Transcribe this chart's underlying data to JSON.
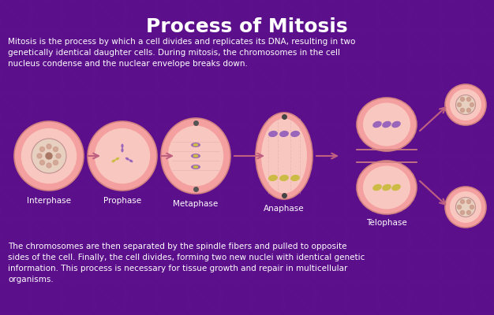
{
  "title": "Process of Mitosis",
  "top_text": "Mitosis is the process by which a cell divides and replicates its DNA, resulting in two\ngenetically identical daughter cells. During mitosis, the chromosomes in the cell\nnucleus condense and the nuclear envelope breaks down.",
  "bottom_text": "The chromosomes are then separated by the spindle fibers and pulled to opposite\nsides of the cell. Finally, the cell divides, forming two new nuclei with identical genetic\ninformation. This process is necessary for tissue growth and repair in multicellular\norganisms.",
  "bg_color": "#5c0f8b",
  "bg_dark": "#3a0060",
  "cell_outer_color": "#f4a0a0",
  "cell_inner_color": "#f8c8c0",
  "cell_nucleus_color": "#e8d0c0",
  "phases": [
    "Interphase",
    "Prophase",
    "Metaphase",
    "Anaphase",
    "Telophase"
  ],
  "title_color": "#ffffff",
  "text_color": "#ffffff",
  "arrow_color": "#c06080"
}
